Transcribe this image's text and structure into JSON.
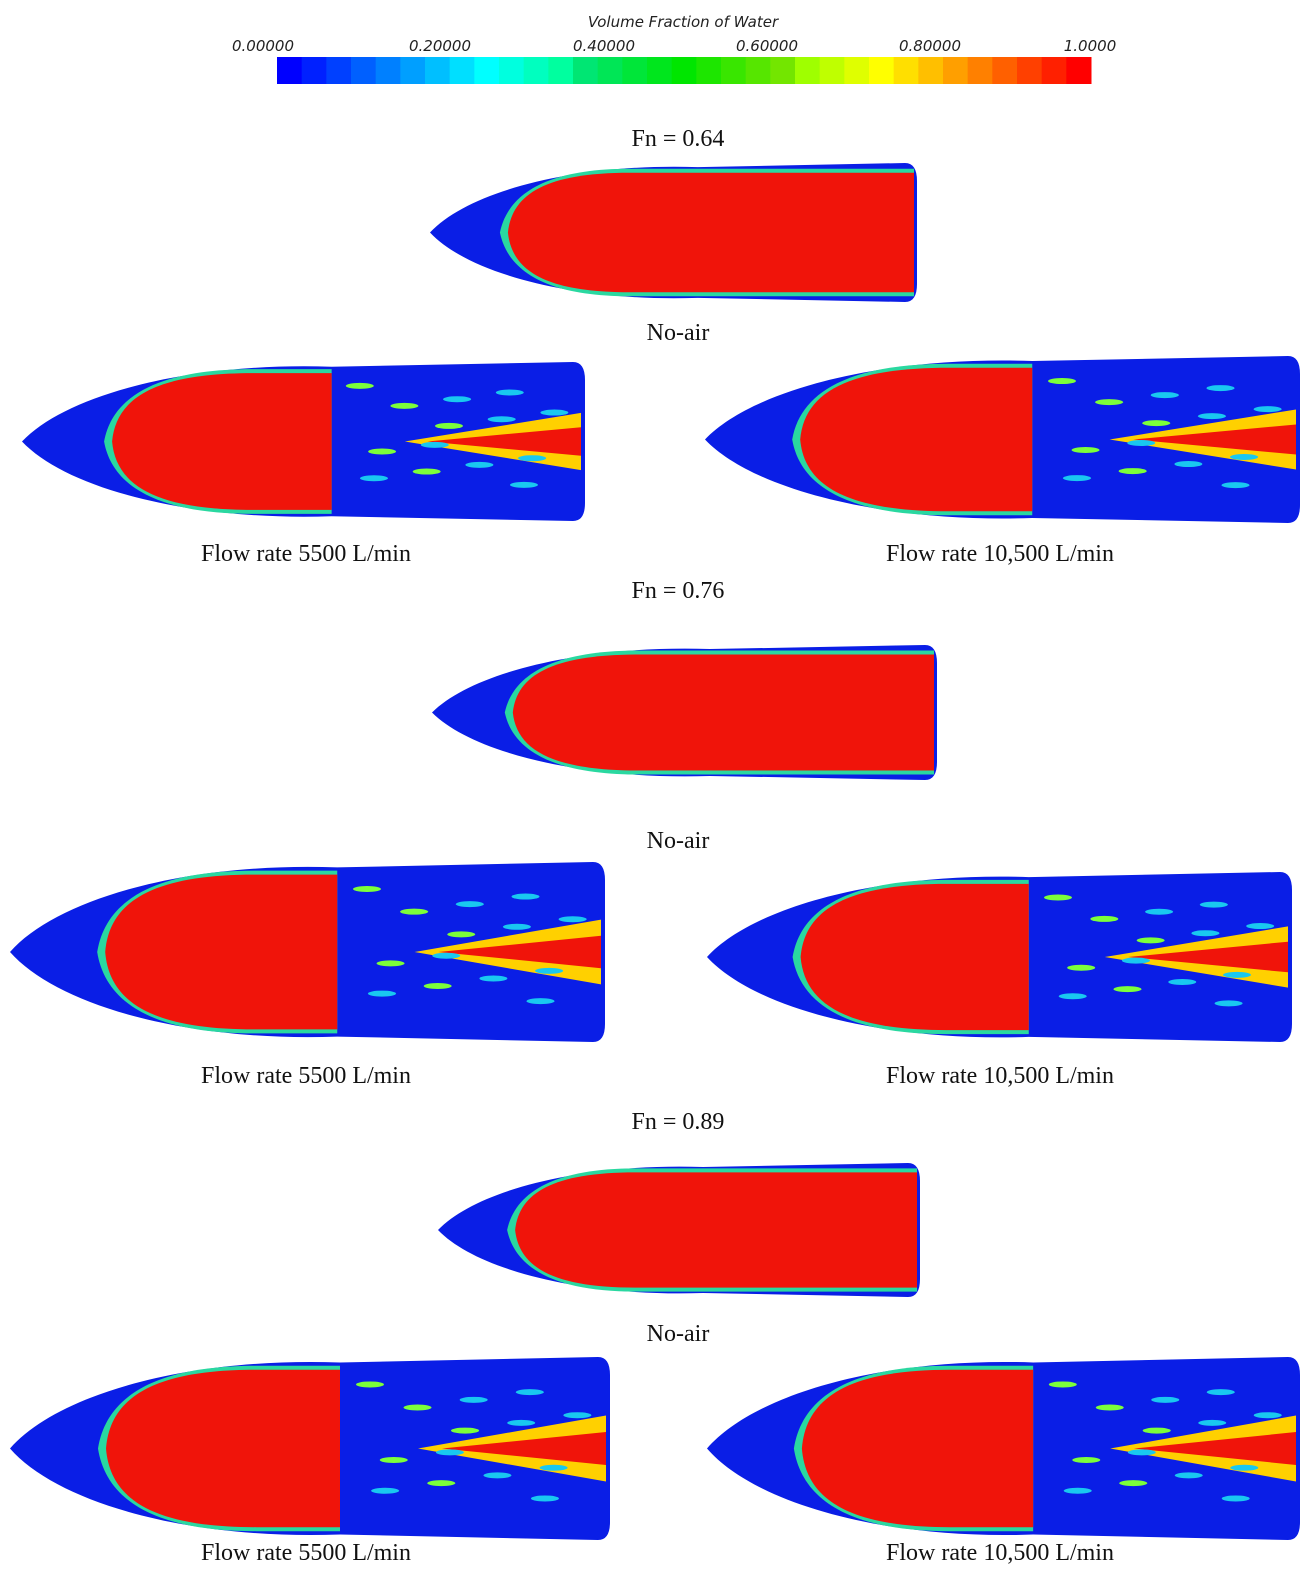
{
  "colorbar": {
    "title": "Volume Fraction of Water",
    "ticks": [
      "0.00000",
      "0.20000",
      "0.40000",
      "0.60000",
      "0.80000",
      "1.0000"
    ]
  },
  "sections": [
    {
      "label": "Fn = 0.64",
      "panels": [
        {
          "caption": "No-air"
        },
        {
          "caption": "Flow rate 5500 L/min"
        },
        {
          "caption": "Flow rate 10,500 L/min"
        }
      ]
    },
    {
      "label": "Fn = 0.76",
      "panels": [
        {
          "caption": "No-air"
        },
        {
          "caption": "Flow rate 5500 L/min"
        },
        {
          "caption": "Flow rate 10,500 L/min"
        }
      ]
    },
    {
      "label": "Fn = 0.89",
      "panels": [
        {
          "caption": "No-air"
        },
        {
          "caption": "Flow rate 5500 L/min"
        },
        {
          "caption": "Flow rate 10,500 L/min"
        }
      ]
    }
  ]
}
